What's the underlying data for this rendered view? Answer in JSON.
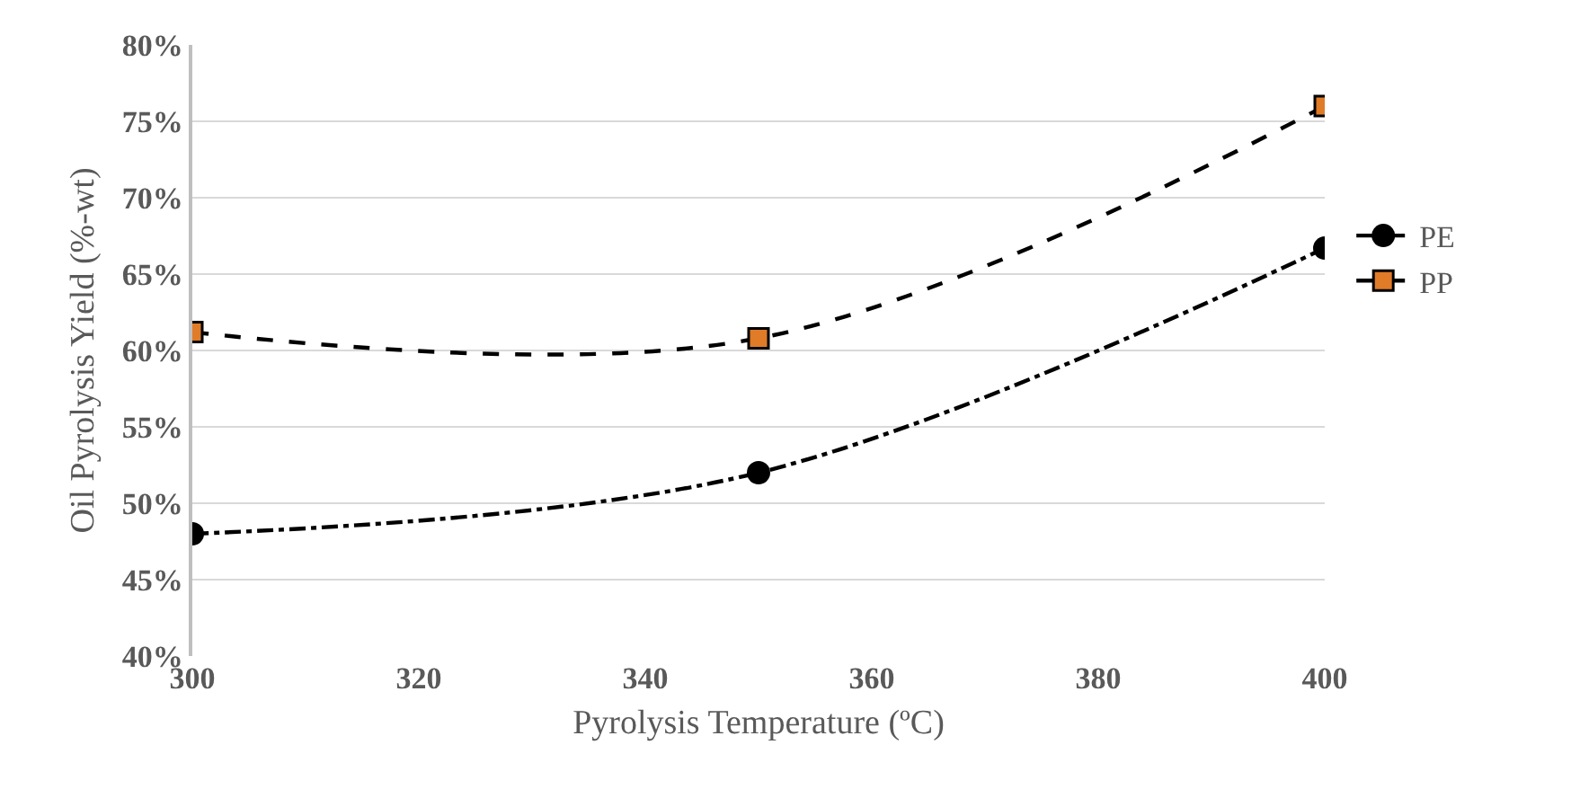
{
  "chart_data": {
    "type": "line",
    "xlabel": "Pyrolysis Temperature (ºC)",
    "ylabel": "Oil Pyrolysis Yield (%-wt)",
    "x": [
      300,
      350,
      400
    ],
    "series": [
      {
        "name": "PE",
        "color": "#000000",
        "values": [
          48,
          52,
          66.7
        ],
        "marker": "circle",
        "line_style": "dashdot"
      },
      {
        "name": "PP",
        "color": "#000000",
        "colors": [
          "#e07b28",
          "#e07b28",
          "#e07b28"
        ],
        "values": [
          61.2,
          60.8,
          76
        ],
        "marker": "square",
        "line_style": "dashed"
      }
    ],
    "xlim": [
      300,
      400
    ],
    "xticks": [
      300,
      320,
      340,
      360,
      380,
      400
    ],
    "ylim": [
      40,
      80
    ],
    "yticks": [
      {
        "value": 40,
        "label": "40%"
      },
      {
        "value": 45,
        "label": "45%"
      },
      {
        "value": 50,
        "label": "50%"
      },
      {
        "value": 55,
        "label": "55%"
      },
      {
        "value": 60,
        "label": "60%"
      },
      {
        "value": 65,
        "label": "65%"
      },
      {
        "value": 70,
        "label": "70%"
      },
      {
        "value": 75,
        "label": "75%"
      },
      {
        "value": 80,
        "label": "80%"
      }
    ],
    "grid": "y",
    "legend": "right"
  }
}
